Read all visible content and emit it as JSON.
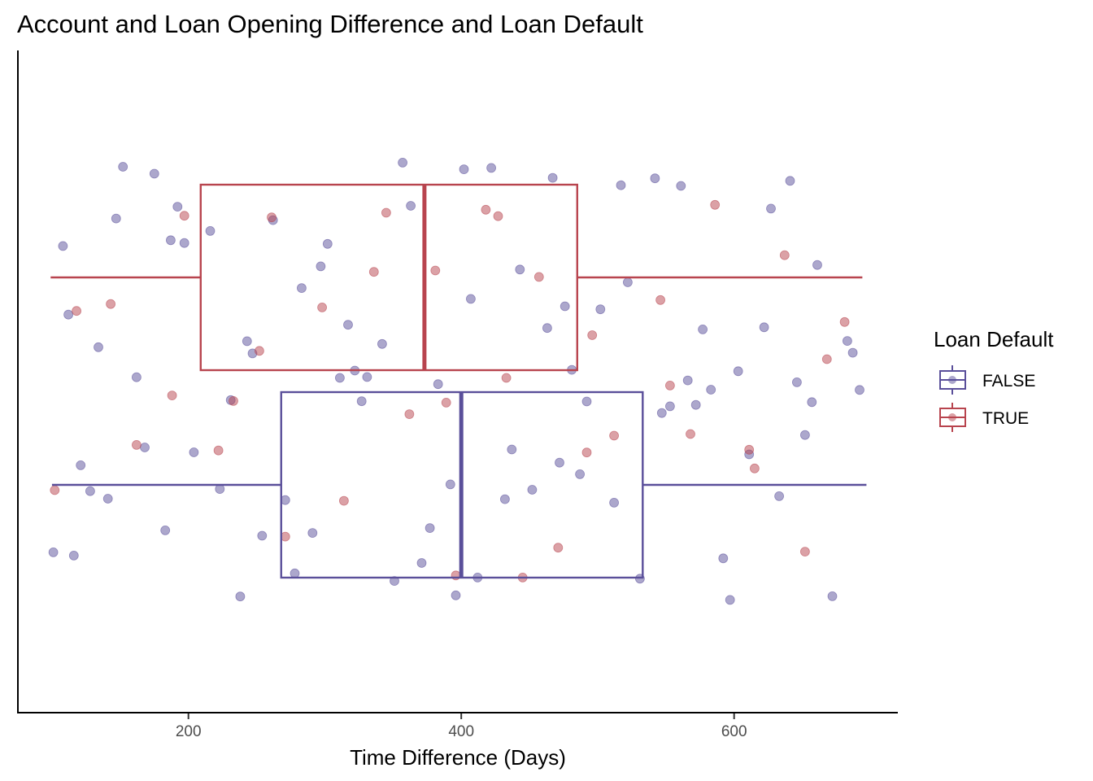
{
  "chart_data": {
    "type": "box+jitter",
    "title": "Account and Loan Opening Difference and Loan Default",
    "xlabel": "Time Difference (Days)",
    "ylabel": "",
    "xlim": [
      75,
      720
    ],
    "x_ticks": [
      200,
      400,
      600
    ],
    "x_tick_labels": [
      "200",
      "400",
      "600"
    ],
    "grid": false,
    "legend": {
      "title": "Loan Default",
      "position": "right",
      "entries": [
        "FALSE",
        "TRUE"
      ]
    },
    "colors": {
      "FALSE": "#5a4f9a",
      "TRUE": "#b8444e"
    },
    "groups": [
      {
        "name": "FALSE",
        "row": 0,
        "box": {
          "min": 100,
          "q1": 268,
          "median": 400,
          "q3": 533,
          "max": 697
        },
        "points": [
          [
            101,
            616
          ],
          [
            112,
            584
          ],
          [
            121,
            657
          ],
          [
            134,
            639
          ],
          [
            141,
            604
          ],
          [
            152,
            588
          ],
          [
            162,
            668
          ],
          [
            175,
            640
          ],
          [
            183,
            629
          ],
          [
            192,
            641
          ],
          [
            204,
            617
          ],
          [
            216,
            668
          ],
          [
            231,
            581
          ],
          [
            243,
            651
          ],
          [
            254,
            594
          ],
          [
            262,
            661
          ],
          [
            271,
            614
          ],
          [
            283,
            585
          ],
          [
            291,
            642
          ],
          [
            302,
            604
          ],
          [
            311,
            621
          ],
          [
            322,
            670
          ],
          [
            331,
            591
          ],
          [
            342,
            637
          ],
          [
            351,
            612
          ],
          [
            363,
            645
          ],
          [
            371,
            580
          ],
          [
            383,
            663
          ],
          [
            392,
            622
          ],
          [
            402,
            635
          ],
          [
            412,
            603
          ],
          [
            422,
            659
          ],
          [
            432,
            618
          ],
          [
            443,
            641
          ],
          [
            452,
            587
          ],
          [
            463,
            672
          ],
          [
            472,
            608
          ],
          [
            481,
            647
          ],
          [
            492,
            625
          ],
          [
            502,
            583
          ],
          [
            512,
            661
          ],
          [
            522,
            604
          ],
          [
            531,
            640
          ],
          [
            542,
            616
          ],
          [
            553,
            644
          ],
          [
            561,
            587
          ],
          [
            572,
            668
          ],
          [
            583,
            635
          ],
          [
            592,
            602
          ],
          [
            603,
            657
          ],
          [
            611,
            614
          ],
          [
            622,
            649
          ],
          [
            633,
            589
          ],
          [
            641,
            629
          ],
          [
            652,
            606
          ],
          [
            661,
            663
          ],
          [
            672,
            622
          ],
          [
            683,
            642
          ],
          [
            692,
            595
          ],
          [
            108,
            601
          ],
          [
            128,
            631
          ],
          [
            147,
            676
          ],
          [
            168,
            596
          ],
          [
            197,
            676
          ],
          [
            223,
            598
          ],
          [
            247,
            632
          ],
          [
            278,
            605
          ],
          [
            297,
            673
          ],
          [
            327,
            582
          ],
          [
            357,
            658
          ],
          [
            377,
            621
          ],
          [
            407,
            590
          ],
          [
            437,
            663
          ],
          [
            467,
            600
          ],
          [
            487,
            636
          ],
          [
            517,
            598
          ],
          [
            547,
            653
          ],
          [
            577,
            612
          ],
          [
            597,
            672
          ],
          [
            627,
            595
          ],
          [
            657,
            646
          ],
          [
            687,
            609
          ],
          [
            116,
            580
          ],
          [
            187,
            620
          ],
          [
            238,
            663
          ],
          [
            317,
            600
          ],
          [
            396,
            660
          ],
          [
            476,
            622
          ],
          [
            566,
            632
          ],
          [
            646,
            601
          ]
        ]
      },
      {
        "name": "TRUE",
        "row": 1,
        "box": {
          "min": 99,
          "q1": 209,
          "median": 373,
          "q3": 485,
          "max": 694
        },
        "points": [
          [
            118,
            585
          ],
          [
            162,
            602
          ],
          [
            197,
            571
          ],
          [
            233,
            594
          ],
          [
            252,
            638
          ],
          [
            271,
            607
          ],
          [
            298,
            576
          ],
          [
            314,
            654
          ],
          [
            336,
            596
          ],
          [
            362,
            641
          ],
          [
            381,
            620
          ],
          [
            396,
            657
          ],
          [
            418,
            583
          ],
          [
            433,
            604
          ],
          [
            457,
            588
          ],
          [
            471,
            621
          ],
          [
            496,
            646
          ],
          [
            512,
            578
          ],
          [
            546,
            612
          ],
          [
            568,
            629
          ],
          [
            586,
            598
          ],
          [
            611,
            655
          ],
          [
            637,
            574
          ],
          [
            652,
            610
          ],
          [
            681,
            633
          ],
          [
            102,
            654
          ],
          [
            143,
            601
          ],
          [
            188,
            586
          ],
          [
            261,
            588
          ],
          [
            389,
            611
          ],
          [
            427,
            585
          ],
          [
            492,
            641
          ],
          [
            553,
            656
          ],
          [
            615,
            640
          ],
          [
            668,
            596
          ],
          [
            222,
            608
          ],
          [
            345,
            576
          ],
          [
            445,
            620
          ]
        ]
      }
    ]
  }
}
